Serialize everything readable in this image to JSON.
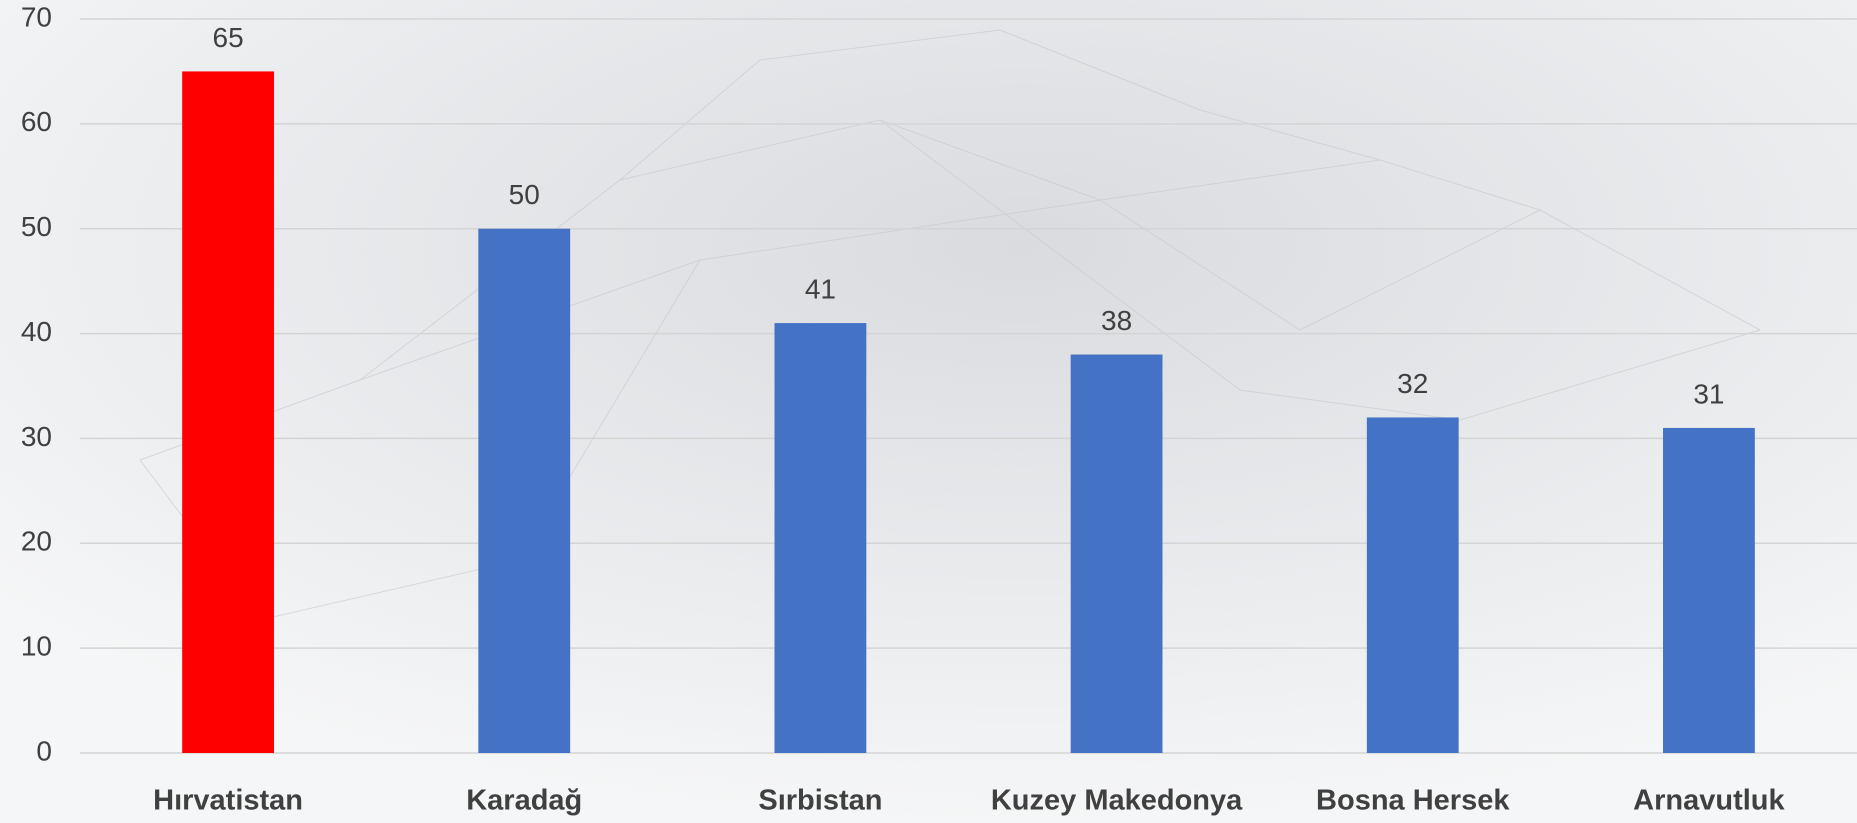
{
  "chart_data": {
    "type": "bar",
    "categories": [
      "Hırvatistan",
      "Karadağ",
      "Sırbistan",
      "Kuzey Makedonya",
      "Bosna Hersek",
      "Arnavutluk"
    ],
    "values": [
      65,
      50,
      41,
      38,
      32,
      31
    ],
    "colors": [
      "#ff0000",
      "#4472c4",
      "#4472c4",
      "#4472c4",
      "#4472c4",
      "#4472c4"
    ],
    "ylim": [
      0,
      70
    ],
    "yticks": [
      0,
      10,
      20,
      30,
      40,
      50,
      60,
      70
    ],
    "grid": true
  }
}
